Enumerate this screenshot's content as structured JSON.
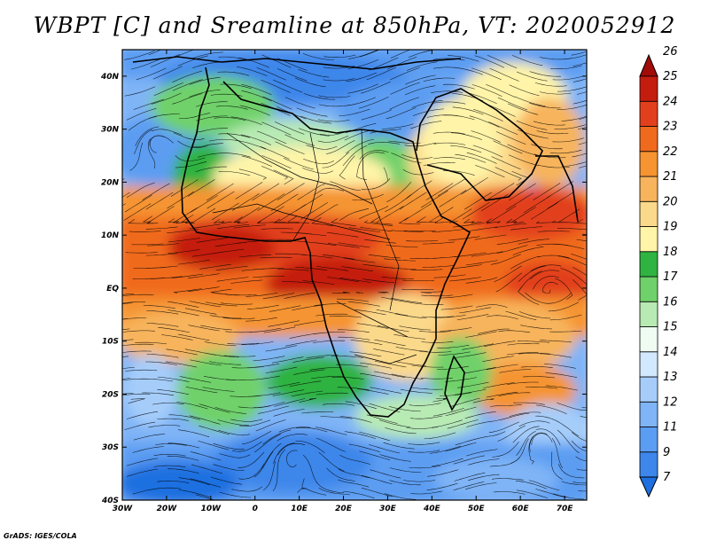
{
  "title": "WBPT [C] and Sreamline at 850hPa, VT: 2020052912",
  "credit": "GrADS: IGES/COLA",
  "map": {
    "lon_range": [
      -30,
      75
    ],
    "lat_range": [
      -40,
      45
    ],
    "lon_ticks": [
      {
        "value": -30,
        "label": "30W"
      },
      {
        "value": -20,
        "label": "20W"
      },
      {
        "value": -10,
        "label": "10W"
      },
      {
        "value": 0,
        "label": "0"
      },
      {
        "value": 10,
        "label": "10E"
      },
      {
        "value": 20,
        "label": "20E"
      },
      {
        "value": 30,
        "label": "30E"
      },
      {
        "value": 40,
        "label": "40E"
      },
      {
        "value": 50,
        "label": "50E"
      },
      {
        "value": 60,
        "label": "60E"
      },
      {
        "value": 70,
        "label": "70E"
      }
    ],
    "lat_ticks": [
      {
        "value": 40,
        "label": "40N"
      },
      {
        "value": 30,
        "label": "30N"
      },
      {
        "value": 20,
        "label": "20N"
      },
      {
        "value": 10,
        "label": "10N"
      },
      {
        "value": 0,
        "label": "EQ"
      },
      {
        "value": -10,
        "label": "10S"
      },
      {
        "value": -20,
        "label": "20S"
      },
      {
        "value": -30,
        "label": "30S"
      },
      {
        "value": -40,
        "label": "40S"
      }
    ]
  },
  "colorbar": {
    "levels": [
      "7",
      "9",
      "11",
      "12",
      "13",
      "14",
      "15",
      "16",
      "17",
      "18",
      "19",
      "20",
      "21",
      "22",
      "23",
      "24",
      "25",
      "26"
    ],
    "colors": [
      "#1f6fe0",
      "#3d86ea",
      "#5b9df2",
      "#7fb4f6",
      "#a6cdfa",
      "#d2e8fd",
      "#eefcf2",
      "#b8eab4",
      "#6fd16a",
      "#2fb341",
      "#fff4a8",
      "#fbd98a",
      "#f7b45c",
      "#f59431",
      "#f06a1e",
      "#e2401c",
      "#c41d10",
      "#a10b08"
    ]
  }
}
